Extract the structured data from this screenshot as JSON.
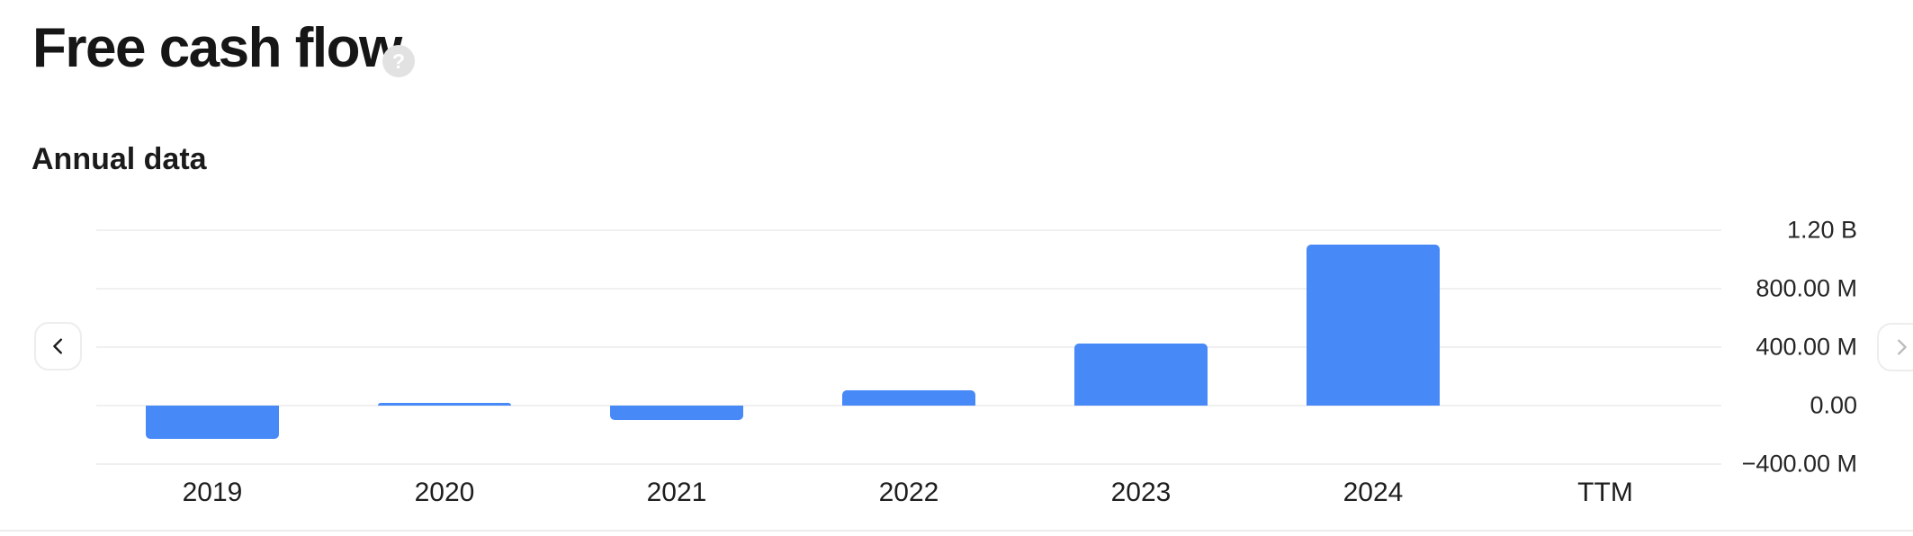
{
  "header": {
    "title": "Free cash flow",
    "help_glyph": "?"
  },
  "section": {
    "subtitle": "Annual data"
  },
  "nav": {
    "prev_icon": "chevron-left",
    "next_icon": "chevron-right"
  },
  "colors": {
    "bar_blue": "#4789f6",
    "gridline": "#f0f0f0",
    "divider": "#ececec",
    "text_dark": "#1b1b1b",
    "help_circle": "#e2e2e2"
  },
  "chart_data": {
    "type": "bar",
    "title": "Free cash flow",
    "subtitle": "Annual data",
    "categories": [
      "2019",
      "2020",
      "2021",
      "2022",
      "2023",
      "2024",
      "TTM"
    ],
    "values_millions": [
      -225,
      20,
      -100,
      105,
      425,
      1100,
      null
    ],
    "ylim_millions": [
      -400,
      1200
    ],
    "yticks": [
      {
        "value": 1200,
        "label": "1.20 B"
      },
      {
        "value": 800,
        "label": "800.00 M"
      },
      {
        "value": 400,
        "label": "400.00 M"
      },
      {
        "value": 0,
        "label": "0.00"
      },
      {
        "value": -400,
        "label": "−400.00 M"
      }
    ],
    "grid": true,
    "legend": false,
    "bar_color": "#4789f6",
    "axis_side": "right"
  }
}
